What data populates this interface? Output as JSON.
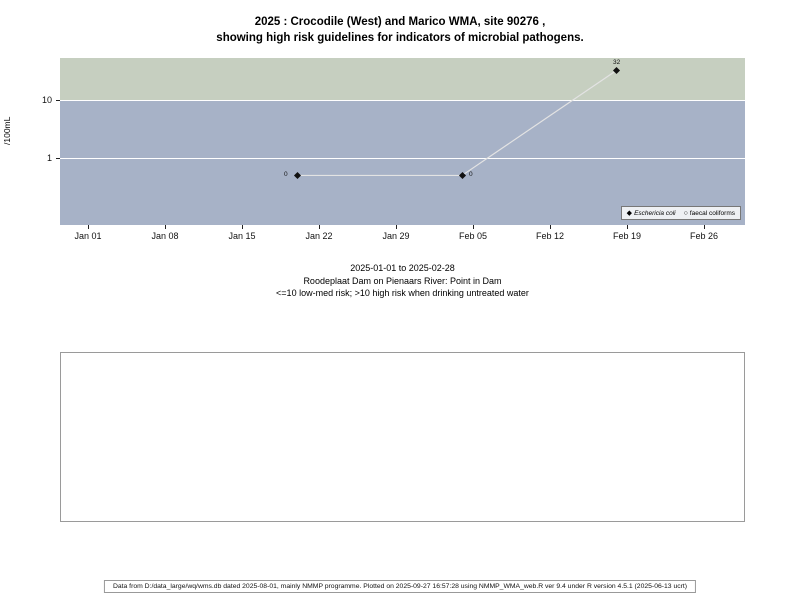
{
  "chart": {
    "title_line1": "2025 : Crocodile (West) and Marico WMA, site 90276 ,",
    "title_line2": "showing high risk guidelines for indicators of microbial pathogens.",
    "ylabel": "/100mL"
  },
  "chart_data": {
    "type": "line",
    "title": "2025 : Crocodile (West) and Marico WMA, site 90276 , showing high risk guidelines for indicators of microbial pathogens.",
    "xlabel": "",
    "ylabel": "/100mL",
    "y_scale": "log",
    "y_tick_labels": [
      "1",
      "10"
    ],
    "y_tick_values": [
      1,
      10
    ],
    "x_tick_labels": [
      "Jan 01",
      "Jan 08",
      "Jan 15",
      "Jan 22",
      "Jan 29",
      "Feb 05",
      "Feb 12",
      "Feb 19",
      "Feb 26"
    ],
    "threshold": 10,
    "bands": [
      {
        "name": "high-risk-band",
        "range": "above 10",
        "color": "#c6cfc0"
      },
      {
        "name": "low-med-risk-band",
        "range": "10 and below",
        "color": "#a7b2c7"
      }
    ],
    "series": [
      {
        "name": "Eschericia coli",
        "marker": "filled-diamond",
        "points": [
          {
            "date": "2025-01-20",
            "value": 0,
            "label": "0",
            "label_side": "left"
          },
          {
            "date": "2025-02-04",
            "value": 0,
            "label": "0",
            "label_side": "right"
          },
          {
            "date": "2025-02-18",
            "value": 32,
            "label": "32",
            "label_side": "above"
          }
        ]
      },
      {
        "name": "faecal coliforms",
        "marker": "open-circle",
        "points": []
      }
    ],
    "period": "2025-01-01 to 2025-02-28",
    "site": "Roodeplaat Dam on Pienaars River: Point in Dam",
    "risk_note": "<=10 low-med risk; >10 high risk when drinking untreated water",
    "legend_position": "bottom-right-inside"
  },
  "legend": {
    "items": [
      {
        "label": "Eschericia coli",
        "marker_icon": "filled-diamond-icon"
      },
      {
        "label": "faecal coliforms",
        "marker_icon": "open-circle-icon"
      }
    ]
  },
  "footer": {
    "text": "Data from D:/data_large/wq/wms.db dated 2025-08-01, mainly NMMP programme. Plotted on 2025-09-27 16:57:28 using NMMP_WMA_web.R ver 9.4 under R version 4.5.1 (2025-06-13 ucrt)"
  }
}
